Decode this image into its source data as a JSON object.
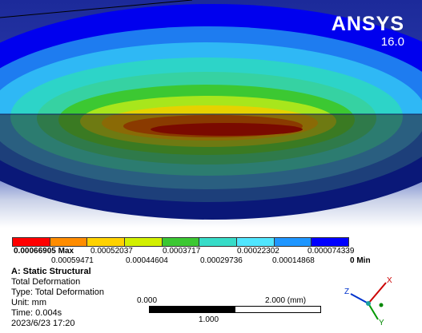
{
  "brand": {
    "name": "ANSYS",
    "version": "16.0"
  },
  "legend": {
    "colors": [
      "#ff0000",
      "#ff8c00",
      "#ffd200",
      "#d2f000",
      "#3cc832",
      "#37dcc8",
      "#50e6ff",
      "#1e96ff",
      "#0000ff"
    ],
    "top_labels": [
      "0.00066905 Max",
      "0.00052037",
      "0.0003717",
      "0.00022302",
      "0.000074339"
    ],
    "bottom_labels": [
      "0.00059471",
      "0.00044604",
      "0.00029736",
      "0.00014868",
      "0 Min"
    ]
  },
  "analysis": {
    "title": "A: Static Structural",
    "result": "Total Deformation",
    "type": "Type: Total Deformation",
    "unit": "Unit: mm",
    "time": "Time: 0.004s",
    "date": "2023/6/23 17:20"
  },
  "scale": {
    "left": "0.000",
    "right": "2.000 (mm)",
    "middle": "1.000"
  },
  "triad": {
    "x": "X",
    "y": "Y",
    "z": "Z"
  }
}
